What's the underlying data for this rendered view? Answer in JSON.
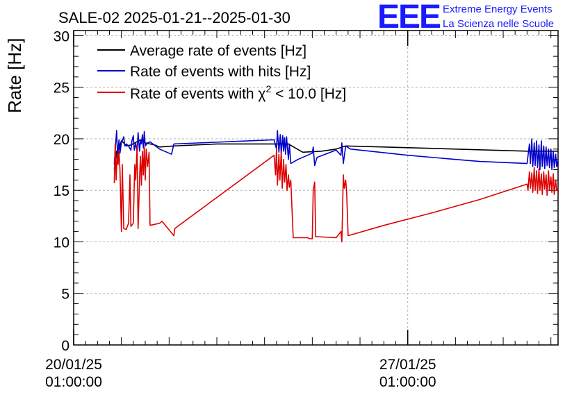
{
  "chart_data": {
    "type": "line",
    "title": "SALE-02 2025-01-21--2025-01-30",
    "ylabel": "Rate [Hz]",
    "xlabel": "",
    "ylim": [
      0,
      30.5
    ],
    "yticks": [
      0,
      5,
      10,
      15,
      20,
      25,
      30
    ],
    "xlim_days": [
      0,
      10.15
    ],
    "xticks": [
      {
        "day": 0,
        "date": "20/01/25",
        "time": "01:00:00"
      },
      {
        "day": 7,
        "date": "27/01/25",
        "time": "01:00:00"
      }
    ],
    "grid": true,
    "legend_position": "top-left",
    "series": [
      {
        "name": "Average rate of events [Hz]",
        "color": "#000000",
        "points": [
          [
            0.85,
            17.0
          ],
          [
            0.9,
            18.8
          ],
          [
            0.95,
            19.0
          ],
          [
            1.0,
            19.8
          ],
          [
            1.05,
            19.6
          ],
          [
            1.1,
            19.3
          ],
          [
            1.2,
            19.4
          ],
          [
            1.4,
            19.9
          ],
          [
            1.5,
            19.6
          ],
          [
            1.7,
            19.4
          ],
          [
            1.8,
            19.2
          ],
          [
            2.1,
            19.3
          ],
          [
            3.0,
            19.5
          ],
          [
            4.5,
            19.5
          ],
          [
            4.8,
            18.7
          ],
          [
            5.2,
            18.8
          ],
          [
            5.5,
            19.0
          ],
          [
            5.7,
            19.3
          ],
          [
            6.5,
            19.2
          ],
          [
            8.0,
            19.0
          ],
          [
            9.5,
            18.8
          ],
          [
            10.15,
            18.8
          ]
        ]
      },
      {
        "name": "Rate of events with hits [Hz]",
        "color": "#0000cc",
        "points": [
          [
            0.85,
            17.5
          ],
          [
            0.88,
            19.5
          ],
          [
            0.9,
            20.8
          ],
          [
            0.92,
            18.2
          ],
          [
            0.95,
            19.9
          ],
          [
            0.97,
            18.6
          ],
          [
            1.0,
            19.6
          ],
          [
            1.05,
            20.2
          ],
          [
            1.07,
            19.3
          ],
          [
            1.1,
            19.5
          ],
          [
            1.15,
            19.3
          ],
          [
            1.2,
            18.9
          ],
          [
            1.22,
            19.8
          ],
          [
            1.25,
            20.3
          ],
          [
            1.27,
            18.9
          ],
          [
            1.3,
            19.6
          ],
          [
            1.33,
            18.7
          ],
          [
            1.35,
            20.6
          ],
          [
            1.38,
            18.8
          ],
          [
            1.4,
            19.8
          ],
          [
            1.42,
            19.5
          ],
          [
            1.44,
            20.4
          ],
          [
            1.46,
            19.1
          ],
          [
            1.48,
            20.7
          ],
          [
            1.5,
            19.3
          ],
          [
            1.55,
            19.6
          ],
          [
            1.6,
            19.7
          ],
          [
            1.8,
            19.0
          ],
          [
            2.05,
            18.5
          ],
          [
            2.1,
            19.5
          ],
          [
            4.2,
            19.9
          ],
          [
            4.25,
            19.0
          ],
          [
            4.27,
            20.8
          ],
          [
            4.3,
            18.7
          ],
          [
            4.33,
            20.4
          ],
          [
            4.35,
            18.5
          ],
          [
            4.38,
            20.3
          ],
          [
            4.4,
            18.8
          ],
          [
            4.42,
            20.1
          ],
          [
            4.44,
            18.5
          ],
          [
            4.46,
            20.2
          ],
          [
            4.5,
            18.0
          ],
          [
            4.52,
            19.5
          ],
          [
            4.55,
            17.6
          ],
          [
            4.7,
            18.0
          ],
          [
            4.9,
            18.4
          ],
          [
            5.0,
            18.6
          ],
          [
            5.02,
            19.2
          ],
          [
            5.05,
            17.4
          ],
          [
            5.1,
            18.2
          ],
          [
            5.5,
            18.9
          ],
          [
            5.6,
            18.4
          ],
          [
            5.62,
            19.6
          ],
          [
            5.65,
            17.6
          ],
          [
            5.7,
            19.3
          ],
          [
            5.8,
            19.0
          ],
          [
            7.0,
            18.4
          ],
          [
            8.0,
            18.0
          ],
          [
            8.5,
            17.8
          ],
          [
            9.5,
            17.6
          ],
          [
            9.55,
            19.5
          ],
          [
            9.57,
            17.6
          ],
          [
            9.6,
            20.0
          ],
          [
            9.62,
            17.3
          ],
          [
            9.65,
            19.6
          ],
          [
            9.67,
            17.4
          ],
          [
            9.7,
            19.8
          ],
          [
            9.72,
            17.2
          ],
          [
            9.75,
            19.4
          ],
          [
            9.77,
            17.0
          ],
          [
            9.8,
            19.8
          ],
          [
            9.82,
            17.3
          ],
          [
            9.85,
            19.3
          ],
          [
            9.87,
            17.1
          ],
          [
            9.9,
            19.2
          ],
          [
            9.92,
            17.4
          ],
          [
            9.95,
            19.0
          ],
          [
            9.97,
            17.2
          ],
          [
            10.0,
            19.0
          ],
          [
            10.02,
            17.0
          ],
          [
            10.05,
            18.8
          ],
          [
            10.07,
            17.2
          ],
          [
            10.1,
            18.5
          ],
          [
            10.12,
            17.3
          ],
          [
            10.15,
            18.0
          ]
        ]
      },
      {
        "name": "Rate of events with χ² < 10.0 [Hz]",
        "color": "#dd0000",
        "points": [
          [
            0.85,
            15.7
          ],
          [
            0.87,
            19.5
          ],
          [
            0.89,
            16.0
          ],
          [
            0.91,
            18.5
          ],
          [
            0.93,
            17.5
          ],
          [
            0.95,
            18.8
          ],
          [
            0.97,
            17.0
          ],
          [
            1.0,
            11.0
          ],
          [
            1.02,
            17.5
          ],
          [
            1.05,
            11.3
          ],
          [
            1.1,
            11.2
          ],
          [
            1.15,
            11.8
          ],
          [
            1.18,
            16.5
          ],
          [
            1.2,
            11.5
          ],
          [
            1.25,
            11.8
          ],
          [
            1.28,
            17.5
          ],
          [
            1.3,
            16.0
          ],
          [
            1.33,
            19.3
          ],
          [
            1.35,
            11.3
          ],
          [
            1.38,
            16.2
          ],
          [
            1.4,
            18.3
          ],
          [
            1.42,
            15.5
          ],
          [
            1.44,
            18.8
          ],
          [
            1.46,
            16.5
          ],
          [
            1.48,
            19.2
          ],
          [
            1.5,
            16.0
          ],
          [
            1.52,
            19.0
          ],
          [
            1.55,
            17.3
          ],
          [
            1.58,
            18.7
          ],
          [
            1.6,
            11.6
          ],
          [
            1.8,
            11.8
          ],
          [
            1.85,
            12.0
          ],
          [
            2.1,
            10.6
          ],
          [
            2.12,
            11.3
          ],
          [
            4.2,
            18.4
          ],
          [
            4.23,
            16.5
          ],
          [
            4.25,
            19.0
          ],
          [
            4.27,
            15.5
          ],
          [
            4.3,
            18.5
          ],
          [
            4.32,
            16.0
          ],
          [
            4.35,
            18.8
          ],
          [
            4.37,
            15.2
          ],
          [
            4.4,
            18.0
          ],
          [
            4.42,
            15.8
          ],
          [
            4.45,
            17.5
          ],
          [
            4.47,
            15.0
          ],
          [
            4.5,
            16.5
          ],
          [
            4.52,
            15.3
          ],
          [
            4.55,
            16.0
          ],
          [
            4.6,
            10.4
          ],
          [
            4.9,
            10.4
          ],
          [
            4.95,
            10.3
          ],
          [
            5.0,
            10.3
          ],
          [
            5.02,
            15.0
          ],
          [
            5.05,
            15.8
          ],
          [
            5.07,
            10.5
          ],
          [
            5.1,
            10.5
          ],
          [
            5.5,
            10.4
          ],
          [
            5.6,
            11.0
          ],
          [
            5.62,
            10.0
          ],
          [
            5.65,
            16.5
          ],
          [
            5.67,
            15.2
          ],
          [
            5.7,
            16.0
          ],
          [
            5.72,
            14.8
          ],
          [
            5.75,
            10.6
          ],
          [
            6.5,
            11.6
          ],
          [
            7.5,
            12.8
          ],
          [
            8.5,
            14.1
          ],
          [
            9.5,
            15.6
          ],
          [
            9.52,
            15.0
          ],
          [
            9.55,
            16.8
          ],
          [
            9.57,
            15.2
          ],
          [
            9.6,
            16.7
          ],
          [
            9.62,
            14.8
          ],
          [
            9.65,
            17.2
          ],
          [
            9.67,
            15.0
          ],
          [
            9.7,
            16.9
          ],
          [
            9.72,
            14.7
          ],
          [
            9.75,
            17.1
          ],
          [
            9.77,
            15.0
          ],
          [
            9.8,
            16.6
          ],
          [
            9.82,
            14.6
          ],
          [
            9.85,
            16.8
          ],
          [
            9.87,
            15.1
          ],
          [
            9.9,
            16.5
          ],
          [
            9.92,
            14.5
          ],
          [
            9.95,
            16.9
          ],
          [
            9.97,
            15.0
          ],
          [
            10.0,
            16.3
          ],
          [
            10.02,
            14.8
          ],
          [
            10.05,
            16.6
          ],
          [
            10.07,
            14.6
          ],
          [
            10.1,
            16.0
          ],
          [
            10.12,
            15.0
          ],
          [
            10.15,
            15.2
          ]
        ]
      }
    ]
  },
  "legend": {
    "avg_label": "Average rate of events [Hz]",
    "hits_label": "Rate of events with hits [Hz]",
    "chi_prefix": "Rate of events with χ",
    "chi_sup": "2",
    "chi_suffix": " < 10.0 [Hz]"
  },
  "logo": {
    "mark": "EEE",
    "line1": "Extreme Energy Events",
    "line2": "La Scienza nelle Scuole"
  }
}
